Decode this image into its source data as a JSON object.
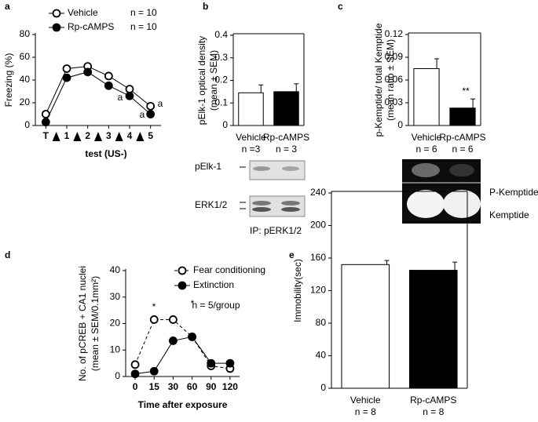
{
  "chart_data": [
    {
      "type": "line",
      "panel": "a",
      "ylabel": [
        "Freezing (%)"
      ],
      "xlabel": "test (US-)",
      "categories": [
        "T",
        "1",
        "2",
        "3",
        "4",
        "5"
      ],
      "ylim": [
        0,
        80
      ],
      "yticks": [
        0,
        20,
        40,
        60,
        80
      ],
      "arrows": true,
      "series": [
        {
          "name": "Vehicle",
          "n_label": "n = 10",
          "color": "#000000",
          "marker": "open",
          "dash": false,
          "values": [
            10,
            50,
            52,
            43.5,
            32,
            17
          ]
        },
        {
          "name": "Rp-cAMPS",
          "n_label": "n = 10",
          "color": "#000000",
          "marker": "filled",
          "dash": false,
          "values": [
            3,
            42,
            47,
            35,
            26,
            10
          ]
        }
      ],
      "annotations": [
        "a",
        "a",
        "a"
      ]
    },
    {
      "type": "bar",
      "panel": "b",
      "ylabel": [
        "pElk-1 optical density",
        "(mean ± SEM)"
      ],
      "categories": [
        "Vehicle",
        "Rp-cAMPS"
      ],
      "n_labels": [
        "n =3",
        "n = 3"
      ],
      "values": [
        0.145,
        0.15
      ],
      "errors": [
        0.035,
        0.035
      ],
      "colors": [
        "#ffffff",
        "#000000"
      ],
      "ylim": [
        0,
        0.4
      ],
      "yticks": [
        0,
        0.1,
        0.2,
        0.3,
        0.4
      ],
      "blot_labels": [
        "pElk-1",
        "ERK1/2",
        "IP: pERK1/2"
      ],
      "annotations": []
    },
    {
      "type": "bar",
      "panel": "c",
      "ylabel": [
        "p-Kemptide/ total Kemptide",
        "(mean ratio ± SEM)"
      ],
      "categories": [
        "Vehicle",
        "Rp-cAMPS"
      ],
      "n_labels": [
        "n = 6",
        "n = 6"
      ],
      "values": [
        0.075,
        0.023
      ],
      "errors": [
        0.013,
        0.012
      ],
      "colors": [
        "#ffffff",
        "#000000"
      ],
      "ylim": [
        0,
        0.12
      ],
      "yticks": [
        0,
        0.03,
        0.06,
        0.09,
        0.12
      ],
      "blot_labels": [
        "P-Kemptide",
        "Kemptide"
      ],
      "annotations": [
        "**"
      ]
    },
    {
      "type": "line",
      "panel": "d",
      "ylabel": [
        "No. of pCREB + CA1 nuclei",
        "(mean ± SEM/0.1mm²)"
      ],
      "xlabel": "Time after exposure",
      "categories": [
        "0",
        "15",
        "30",
        "60",
        "90",
        "120"
      ],
      "ylim": [
        0,
        40
      ],
      "yticks": [
        0,
        10,
        20,
        30,
        40
      ],
      "arrows": false,
      "series": [
        {
          "name": "Fear conditioning",
          "color": "#000000",
          "marker": "open",
          "dash": true,
          "values": [
            4.5,
            21.5,
            21.5,
            15,
            4,
            3
          ]
        },
        {
          "name": "Extinction",
          "color": "#000000",
          "marker": "filled",
          "dash": false,
          "values": [
            1,
            2,
            13.5,
            15,
            5,
            5
          ]
        }
      ],
      "annotations": [
        "*",
        "*",
        "n = 5/group"
      ]
    },
    {
      "type": "bar",
      "panel": "e",
      "ylabel": [
        "Immobility(sec)"
      ],
      "categories": [
        "Vehicle",
        "Rp-cAMPS"
      ],
      "n_labels": [
        "n = 8",
        "n = 8"
      ],
      "values": [
        152,
        145
      ],
      "errors": [
        5,
        10
      ],
      "colors": [
        "#ffffff",
        "#000000"
      ],
      "ylim": [
        0,
        240
      ],
      "yticks": [
        0,
        40,
        80,
        120,
        160,
        200,
        240
      ],
      "blot_labels": [],
      "annotations": []
    }
  ]
}
